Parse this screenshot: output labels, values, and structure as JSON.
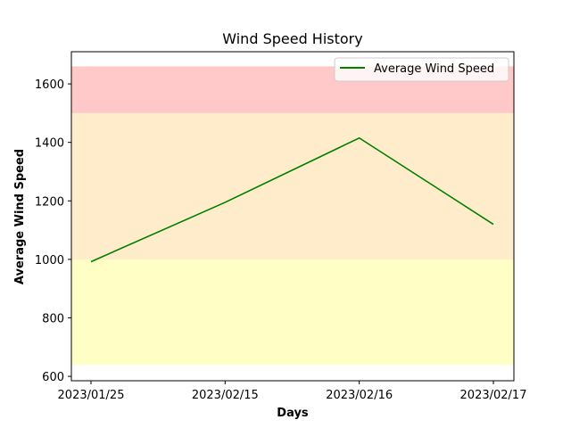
{
  "chart_data": {
    "type": "line",
    "title": "Wind Speed History",
    "xlabel": "Days",
    "ylabel": "Average Wind Speed",
    "categories": [
      "2023/01/25",
      "2023/02/15",
      "2023/02/16",
      "2023/02/17"
    ],
    "series": [
      {
        "name": "Average Wind Speed",
        "values": [
          992,
          1195,
          1415,
          1120
        ],
        "color": "#008000"
      }
    ],
    "ylim": [
      585,
      1710
    ],
    "yticks": [
      600,
      800,
      1000,
      1200,
      1400,
      1600
    ],
    "bands": [
      {
        "from": 640,
        "to": 1000,
        "color": "#ffffc5"
      },
      {
        "from": 1000,
        "to": 1500,
        "color": "#feeccb"
      },
      {
        "from": 1500,
        "to": 1660,
        "color": "#ffc9c9"
      }
    ],
    "legend_position": "top-right",
    "grid": false
  }
}
